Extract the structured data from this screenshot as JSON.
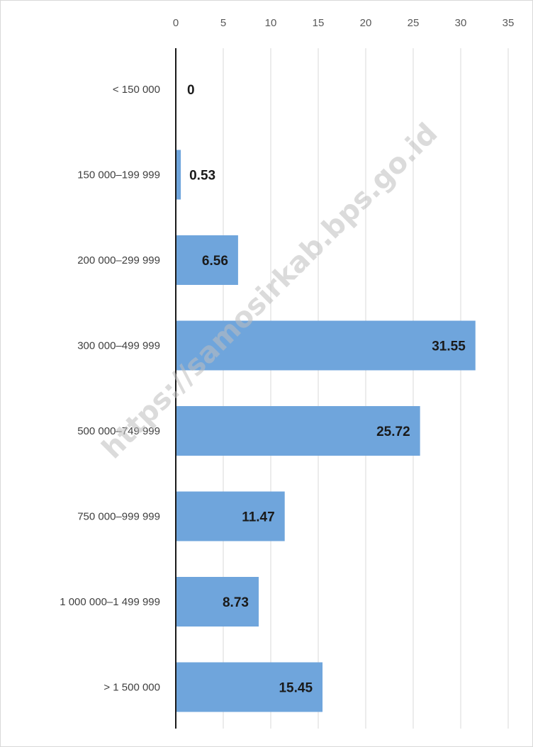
{
  "chart_data": {
    "type": "bar",
    "orientation": "horizontal",
    "categories": [
      "< 150 000",
      "150 000–199 999",
      "200 000–299 999",
      "300 000–499 999",
      "500 000–749 999",
      "750 000–999 999",
      "1 000 000–1 499 999",
      "> 1 500 000"
    ],
    "values": [
      0,
      0.53,
      6.56,
      31.55,
      25.72,
      11.47,
      8.73,
      15.45
    ],
    "data_labels": [
      "0",
      "0.53",
      "6.56",
      "31.55",
      "25.72",
      "11.47",
      "8.73",
      "15.45"
    ],
    "xlim": [
      0,
      35
    ],
    "x_ticks": [
      0,
      5,
      10,
      15,
      20,
      25,
      30,
      35
    ],
    "x_axis_position": "top",
    "grid": true,
    "legend": "none",
    "bar_color": "#6fa5dc",
    "gridline_color": "#d9d9d9",
    "axis_color": "#1a1a1a"
  },
  "watermark": "https://samosirkab.bps.go.id"
}
